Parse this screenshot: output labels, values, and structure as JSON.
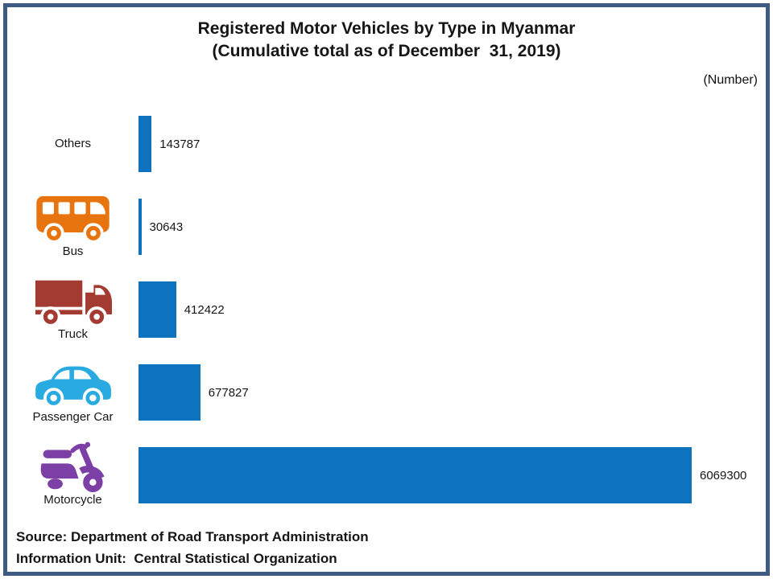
{
  "frame": {
    "border_color": "#3d5a80"
  },
  "title": {
    "line1": "Registered Motor Vehicles by Type in Myanmar",
    "line2": "(Cumulative total as of December  31, 2019)"
  },
  "unit_label": "(Number)",
  "chart_data": {
    "type": "bar",
    "orientation": "horizontal",
    "title": "Registered Motor Vehicles by Type in Myanmar (Cumulative total as of December 31, 2019)",
    "xlabel": "Number",
    "ylabel": "",
    "xlim": [
      0,
      6069300
    ],
    "grid": false,
    "legend": false,
    "bar_color": "#0d73bf",
    "categories": [
      "Others",
      "Bus",
      "Truck",
      "Passenger Car",
      "Motorcycle"
    ],
    "values": [
      143787,
      30643,
      412422,
      677827,
      6069300
    ],
    "rows": [
      {
        "label": "Others",
        "value": 143787,
        "value_text": "143787",
        "icon": null,
        "icon_color": null
      },
      {
        "label": "Bus",
        "value": 30643,
        "value_text": "30643",
        "icon": "bus-icon",
        "icon_color": "#e7740e"
      },
      {
        "label": "Truck",
        "value": 412422,
        "value_text": "412422",
        "icon": "truck-icon",
        "icon_color": "#a33b32"
      },
      {
        "label": "Passenger Car",
        "value": 677827,
        "value_text": "677827",
        "icon": "car-icon",
        "icon_color": "#29abe2"
      },
      {
        "label": "Motorcycle",
        "value": 6069300,
        "value_text": "6069300",
        "icon": "motorcycle-icon",
        "icon_color": "#7b3fa5"
      }
    ]
  },
  "footer": {
    "source": "Source: Department of Road Transport Administration",
    "info_unit": "Information Unit:  Central Statistical Organization"
  }
}
